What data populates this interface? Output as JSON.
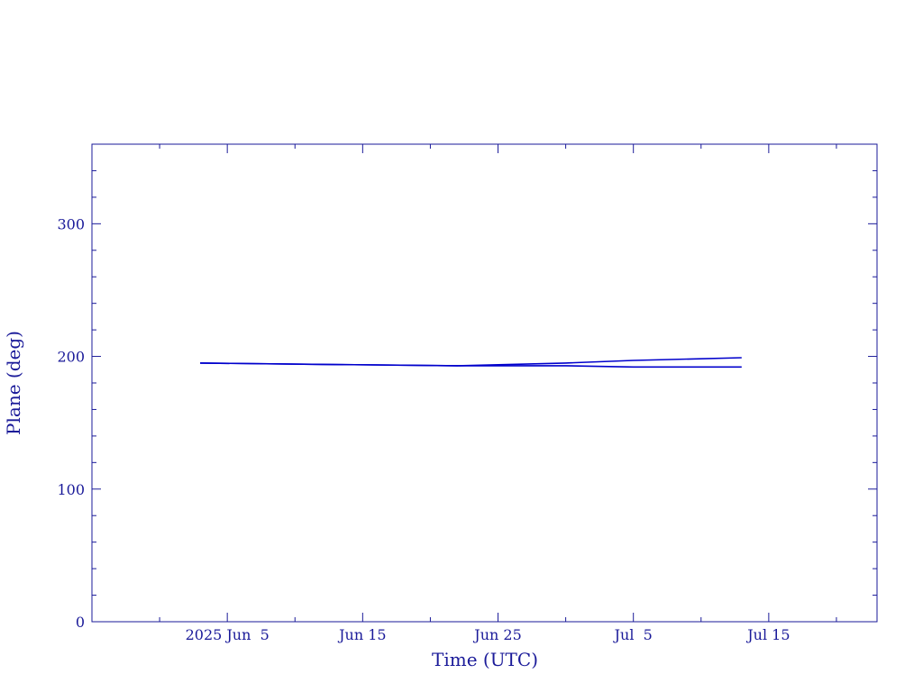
{
  "colors": {
    "axis": "#1a1a99",
    "series": "#0000cc",
    "background": "#ffffff"
  },
  "chart_data": {
    "type": "line",
    "xlabel": "Time (UTC)",
    "ylabel": "Plane (deg)",
    "xlim": [
      "2025-05-26",
      "2025-07-23"
    ],
    "ylim": [
      0,
      360
    ],
    "x_tick_labels": [
      {
        "date": "2025-06-05",
        "label": "2025 Jun  5"
      },
      {
        "date": "2025-06-15",
        "label": "Jun 15"
      },
      {
        "date": "2025-06-25",
        "label": "Jun 25"
      },
      {
        "date": "2025-07-05",
        "label": "Jul  5"
      },
      {
        "date": "2025-07-15",
        "label": "Jul 15"
      }
    ],
    "x_minor_tick_dates": [
      "2025-05-31",
      "2025-06-10",
      "2025-06-20",
      "2025-06-30",
      "2025-07-10",
      "2025-07-20"
    ],
    "y_ticks": [
      0,
      100,
      200,
      300
    ],
    "y_minor_step": 20,
    "grid": false,
    "series": [
      {
        "x": [
          "2025-06-03",
          "2025-06-12",
          "2025-06-22",
          "2025-06-30",
          "2025-07-05",
          "2025-07-13"
        ],
        "values": [
          195,
          194,
          193,
          193,
          192,
          192
        ]
      },
      {
        "x": [
          "2025-06-03",
          "2025-06-12",
          "2025-06-22",
          "2025-06-30",
          "2025-07-05",
          "2025-07-13"
        ],
        "values": [
          195,
          194,
          193,
          195,
          197,
          199
        ]
      }
    ]
  }
}
